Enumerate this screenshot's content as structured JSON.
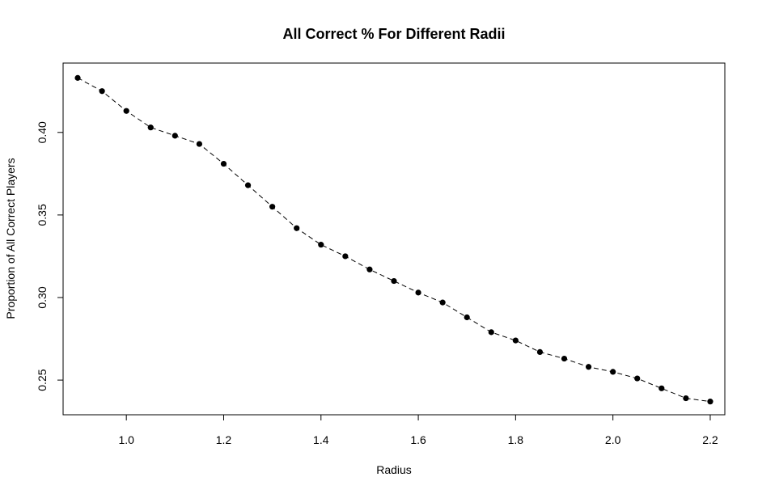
{
  "chart_data": {
    "type": "line",
    "title": "All Correct % For Different Radii",
    "xlabel": "Radius",
    "ylabel": "Proportion of All Correct Players",
    "xlim": [
      0.87,
      2.23
    ],
    "ylim": [
      0.229,
      0.442
    ],
    "x_ticks": [
      1.0,
      1.2,
      1.4,
      1.6,
      1.8,
      2.0,
      2.2
    ],
    "x_tick_labels": [
      "1.0",
      "1.2",
      "1.4",
      "1.6",
      "1.8",
      "2.0",
      "2.2"
    ],
    "y_ticks": [
      0.25,
      0.3,
      0.35,
      0.4
    ],
    "y_tick_labels": [
      "0.25",
      "0.30",
      "0.35",
      "0.40"
    ],
    "grid": false,
    "line_style": "dashed",
    "marker": "filled-circle",
    "color": "#000000",
    "series": [
      {
        "x": [
          0.9,
          0.95,
          1.0,
          1.05,
          1.1,
          1.15,
          1.2,
          1.25,
          1.3,
          1.35,
          1.4,
          1.45,
          1.5,
          1.55,
          1.6,
          1.65,
          1.7,
          1.75,
          1.8,
          1.85,
          1.9,
          1.95,
          2.0,
          2.05,
          2.1,
          2.15,
          2.2
        ],
        "y": [
          0.433,
          0.425,
          0.413,
          0.403,
          0.398,
          0.393,
          0.381,
          0.368,
          0.355,
          0.342,
          0.332,
          0.325,
          0.317,
          0.31,
          0.303,
          0.297,
          0.288,
          0.279,
          0.274,
          0.267,
          0.263,
          0.258,
          0.255,
          0.251,
          0.245,
          0.239,
          0.237
        ]
      }
    ]
  }
}
